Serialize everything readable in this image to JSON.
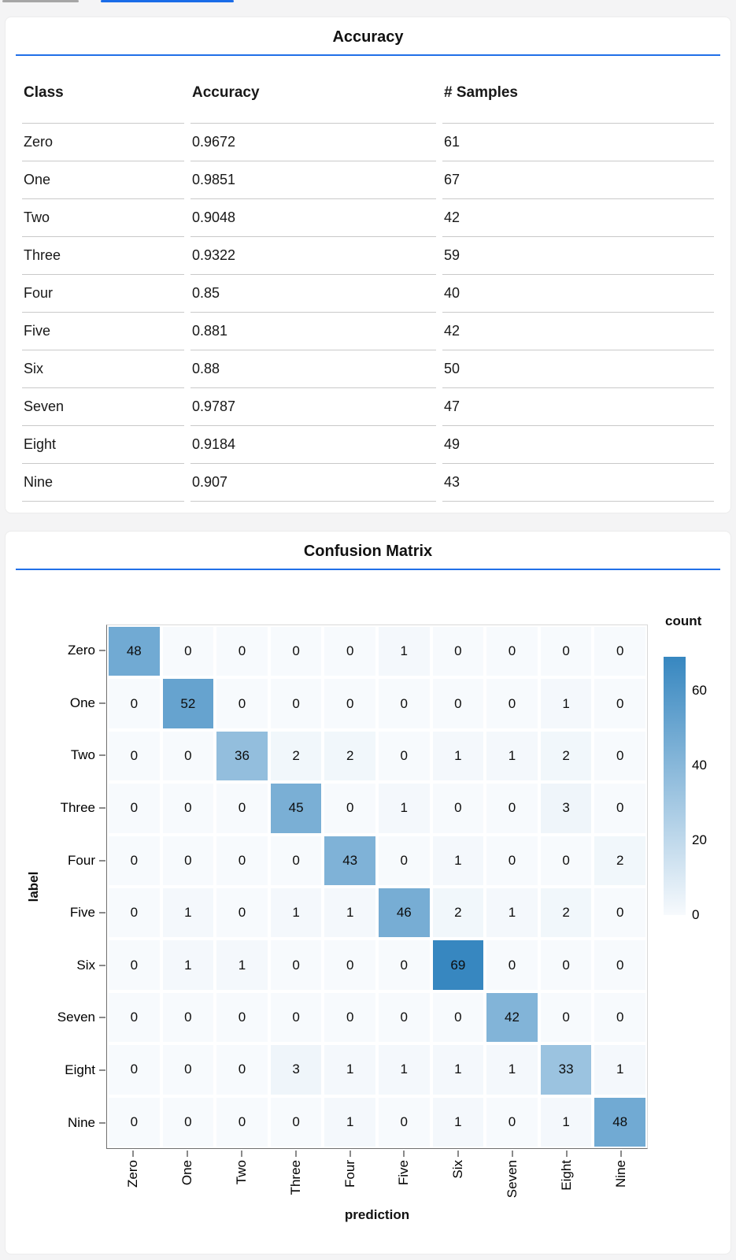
{
  "top_bars": {
    "gray_color": "#a6a6a6",
    "blue_color": "#1a6ce8"
  },
  "accents": {
    "title_underline": "#2170e8"
  },
  "chart_data": [
    {
      "type": "table",
      "title": "Accuracy",
      "columns": [
        "Class",
        "Accuracy",
        "# Samples"
      ],
      "rows": [
        [
          "Zero",
          "0.9672",
          "61"
        ],
        [
          "One",
          "0.9851",
          "67"
        ],
        [
          "Two",
          "0.9048",
          "42"
        ],
        [
          "Three",
          "0.9322",
          "59"
        ],
        [
          "Four",
          "0.85",
          "40"
        ],
        [
          "Five",
          "0.881",
          "42"
        ],
        [
          "Six",
          "0.88",
          "50"
        ],
        [
          "Seven",
          "0.9787",
          "47"
        ],
        [
          "Eight",
          "0.9184",
          "49"
        ],
        [
          "Nine",
          "0.907",
          "43"
        ]
      ]
    },
    {
      "type": "heatmap",
      "title": "Confusion Matrix",
      "xlabel": "prediction",
      "ylabel": "label",
      "x_categories": [
        "Zero",
        "One",
        "Two",
        "Three",
        "Four",
        "Five",
        "Six",
        "Seven",
        "Eight",
        "Nine"
      ],
      "y_categories": [
        "Zero",
        "One",
        "Two",
        "Three",
        "Four",
        "Five",
        "Six",
        "Seven",
        "Eight",
        "Nine"
      ],
      "values": [
        [
          48,
          0,
          0,
          0,
          0,
          1,
          0,
          0,
          0,
          0
        ],
        [
          0,
          52,
          0,
          0,
          0,
          0,
          0,
          0,
          1,
          0
        ],
        [
          0,
          0,
          36,
          2,
          2,
          0,
          1,
          1,
          2,
          0
        ],
        [
          0,
          0,
          0,
          45,
          0,
          1,
          0,
          0,
          3,
          0
        ],
        [
          0,
          0,
          0,
          0,
          43,
          0,
          1,
          0,
          0,
          2
        ],
        [
          0,
          1,
          0,
          1,
          1,
          46,
          2,
          1,
          2,
          0
        ],
        [
          0,
          1,
          1,
          0,
          0,
          0,
          69,
          0,
          0,
          0
        ],
        [
          0,
          0,
          0,
          0,
          0,
          0,
          0,
          42,
          0,
          0
        ],
        [
          0,
          0,
          0,
          3,
          1,
          1,
          1,
          1,
          33,
          1
        ],
        [
          0,
          0,
          0,
          0,
          1,
          0,
          1,
          0,
          1,
          48
        ]
      ],
      "legend": {
        "title": "count",
        "ticks": [
          0,
          20,
          40,
          60
        ],
        "domain": [
          0,
          69
        ]
      },
      "colors": {
        "low": "#f7fafd",
        "high": "#3787c0"
      },
      "grid": false,
      "legend_position": "right"
    }
  ]
}
